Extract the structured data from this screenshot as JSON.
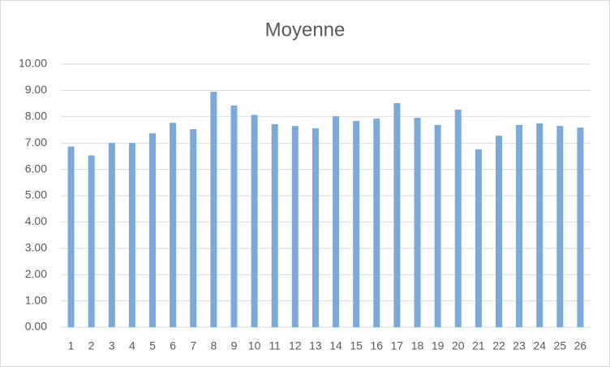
{
  "chart_data": {
    "type": "bar",
    "title": "Moyenne",
    "categories": [
      "1",
      "2",
      "3",
      "4",
      "5",
      "6",
      "7",
      "8",
      "9",
      "10",
      "11",
      "12",
      "13",
      "14",
      "15",
      "16",
      "17",
      "18",
      "19",
      "20",
      "21",
      "22",
      "23",
      "24",
      "25",
      "26"
    ],
    "values": [
      6.87,
      6.53,
      7.0,
      7.0,
      7.37,
      7.77,
      7.53,
      8.95,
      8.43,
      8.07,
      7.72,
      7.65,
      7.56,
      8.02,
      7.84,
      7.93,
      8.52,
      7.96,
      7.69,
      8.27,
      6.76,
      7.28,
      7.69,
      7.75,
      7.65,
      7.59
    ],
    "color": "#7aaadb",
    "ylim": [
      0,
      10
    ],
    "yticks": [
      {
        "value": 0,
        "label": "0.00"
      },
      {
        "value": 1,
        "label": "1.00"
      },
      {
        "value": 2,
        "label": "2.00"
      },
      {
        "value": 3,
        "label": "3.00"
      },
      {
        "value": 4,
        "label": "4.00"
      },
      {
        "value": 5,
        "label": "5.00"
      },
      {
        "value": 6,
        "label": "6.00"
      },
      {
        "value": 7,
        "label": "7.00"
      },
      {
        "value": 8,
        "label": "8.00"
      },
      {
        "value": 9,
        "label": "9.00"
      },
      {
        "value": 10,
        "label": "10.00"
      }
    ],
    "grid": true
  }
}
